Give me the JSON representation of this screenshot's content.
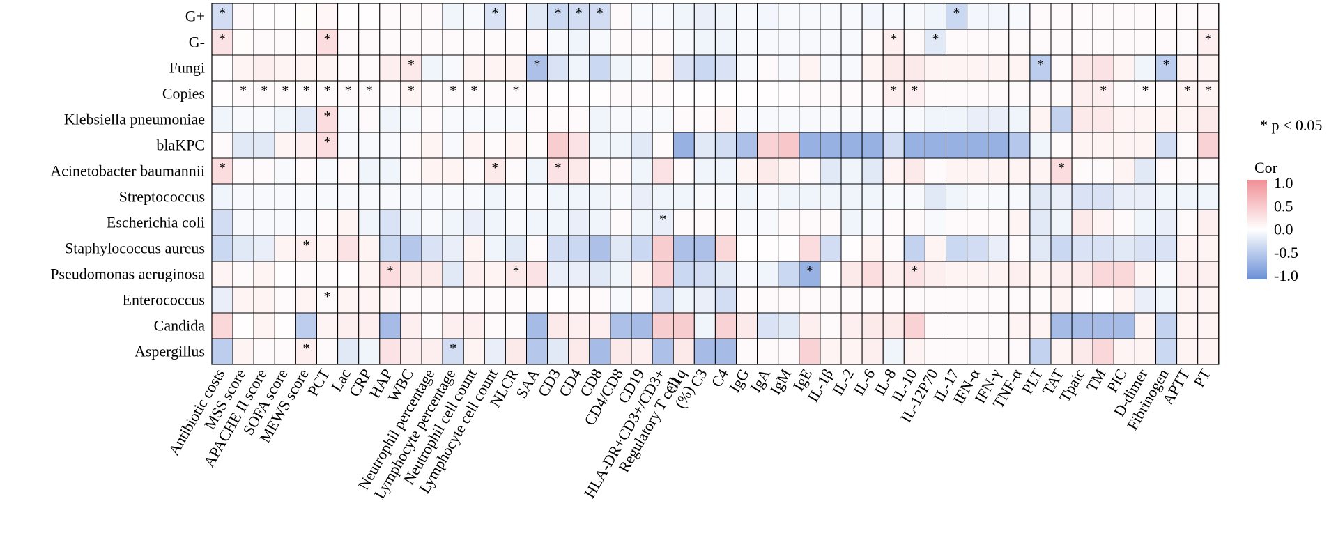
{
  "chart_data": {
    "type": "heatmap",
    "title": "",
    "rows": [
      "G+",
      "G-",
      "Fungi",
      "Copies",
      "Klebsiella pneumoniae",
      "blaKPC",
      "Acinetobacter baumannii",
      "Streptococcus",
      "Escherichia coli",
      "Staphylococcus aureus",
      "Pseudomonas aeruginosa",
      "Enterococcus",
      "Candida",
      "Aspergillus"
    ],
    "columns": [
      {
        "lines": [
          "Antibiotic costs"
        ]
      },
      {
        "lines": [
          "MSS score"
        ]
      },
      {
        "lines": [
          "APACHE II score"
        ]
      },
      {
        "lines": [
          "SOFA score"
        ]
      },
      {
        "lines": [
          "MEWS score"
        ]
      },
      {
        "lines": [
          "PCT"
        ]
      },
      {
        "lines": [
          "Lac"
        ]
      },
      {
        "lines": [
          "CRP"
        ]
      },
      {
        "lines": [
          "HAP"
        ]
      },
      {
        "lines": [
          "WBC"
        ]
      },
      {
        "lines": [
          "Neutrophil percentage"
        ]
      },
      {
        "lines": [
          "Lymphocyte percentage"
        ]
      },
      {
        "lines": [
          "Neutrophil cell count"
        ]
      },
      {
        "lines": [
          "Lymphocyte cell count"
        ]
      },
      {
        "lines": [
          "NLCR"
        ]
      },
      {
        "lines": [
          "SAA"
        ]
      },
      {
        "lines": [
          "CD3"
        ]
      },
      {
        "lines": [
          "CD4"
        ]
      },
      {
        "lines": [
          "CD8"
        ]
      },
      {
        "lines": [
          "CD4/CD8"
        ]
      },
      {
        "lines": [
          "CD19"
        ]
      },
      {
        "lines": [
          "HLA-DR+CD3+/CD3+",
          "Regulatory T cell",
          "(%)"
        ]
      },
      {
        "lines": [
          "C1q"
        ]
      },
      {
        "lines": [
          "C3"
        ]
      },
      {
        "lines": [
          "C4"
        ]
      },
      {
        "lines": [
          "IgG"
        ]
      },
      {
        "lines": [
          "IgA"
        ]
      },
      {
        "lines": [
          "IgM"
        ]
      },
      {
        "lines": [
          "IgE"
        ]
      },
      {
        "lines": [
          "IL-1β"
        ]
      },
      {
        "lines": [
          "IL-2"
        ]
      },
      {
        "lines": [
          "IL-6"
        ]
      },
      {
        "lines": [
          "IL-8"
        ]
      },
      {
        "lines": [
          "IL-10"
        ]
      },
      {
        "lines": [
          "IL-12P70"
        ]
      },
      {
        "lines": [
          "IL-17"
        ]
      },
      {
        "lines": [
          "IFN-α"
        ]
      },
      {
        "lines": [
          "IFN-γ"
        ]
      },
      {
        "lines": [
          "TNF-α"
        ]
      },
      {
        "lines": [
          "PLT"
        ]
      },
      {
        "lines": [
          "TAT"
        ]
      },
      {
        "lines": [
          "Tpaic"
        ]
      },
      {
        "lines": [
          "TM"
        ]
      },
      {
        "lines": [
          "PIC"
        ]
      },
      {
        "lines": [
          "D-dimer"
        ]
      },
      {
        "lines": [
          "Fibrinogen"
        ]
      },
      {
        "lines": [
          "APTT"
        ]
      },
      {
        "lines": [
          "PT"
        ]
      }
    ],
    "values": [
      [
        -0.3,
        0.05,
        0.02,
        0.02,
        0.03,
        0.08,
        0.02,
        0.02,
        0.05,
        0.05,
        0.05,
        -0.1,
        -0.05,
        -0.25,
        0.05,
        -0.2,
        -0.35,
        -0.3,
        -0.3,
        0.05,
        -0.05,
        -0.05,
        -0.1,
        -0.15,
        -0.1,
        -0.05,
        -0.08,
        -0.05,
        -0.05,
        -0.05,
        -0.05,
        -0.08,
        -0.05,
        -0.05,
        -0.1,
        -0.35,
        -0.08,
        -0.08,
        -0.05,
        0.05,
        0.05,
        0.05,
        0.05,
        0.05,
        0.05,
        0.05,
        0.05,
        0.05
      ],
      [
        0.25,
        0.03,
        0.05,
        0.05,
        0.05,
        0.3,
        0.05,
        0.05,
        0.05,
        0.05,
        0.05,
        0.05,
        0.05,
        0.05,
        0.05,
        0.05,
        -0.05,
        -0.1,
        -0.05,
        0.05,
        0.05,
        0.05,
        -0.05,
        -0.1,
        -0.1,
        -0.05,
        -0.05,
        -0.05,
        -0.05,
        -0.05,
        -0.05,
        0.05,
        0.15,
        0.05,
        -0.2,
        0.05,
        0.05,
        0.05,
        0.05,
        0.05,
        0.05,
        0.05,
        0.05,
        0.05,
        0.05,
        0.05,
        0.05,
        0.15
      ],
      [
        0.02,
        0.1,
        0.15,
        0.1,
        0.1,
        0.1,
        0.05,
        0.05,
        0.15,
        0.2,
        -0.1,
        -0.05,
        0.1,
        0.1,
        0.1,
        -0.55,
        -0.25,
        -0.1,
        -0.35,
        -0.1,
        -0.05,
        0.1,
        -0.25,
        -0.35,
        -0.25,
        -0.05,
        0.05,
        -0.05,
        0.1,
        -0.05,
        -0.05,
        0.1,
        0.2,
        0.2,
        0.1,
        0.1,
        0.1,
        0.1,
        0.1,
        -0.45,
        0.05,
        0.2,
        0.25,
        0.1,
        -0.1,
        -0.45,
        0.1,
        0.1
      ],
      [
        0.02,
        0.05,
        0.05,
        0.05,
        0.05,
        0.05,
        0.05,
        0.05,
        0.05,
        0.1,
        0.05,
        0.05,
        0.05,
        0.05,
        0.05,
        0.05,
        0.02,
        0.02,
        0.02,
        0.05,
        0.05,
        0.05,
        0.02,
        0.02,
        0.02,
        0.02,
        0.02,
        0.02,
        0.05,
        0.05,
        0.05,
        0.05,
        0.15,
        0.15,
        0.05,
        0.05,
        0.05,
        0.05,
        0.05,
        0.05,
        0.05,
        0.15,
        0.15,
        0.05,
        0.05,
        0.05,
        0.1,
        0.1
      ],
      [
        -0.1,
        -0.05,
        -0.05,
        -0.1,
        -0.2,
        0.3,
        -0.05,
        0.05,
        -0.1,
        -0.05,
        0.05,
        -0.05,
        -0.05,
        -0.05,
        -0.05,
        0.05,
        0.05,
        0.05,
        -0.1,
        -0.05,
        -0.05,
        -0.05,
        0.05,
        0.05,
        0.1,
        -0.05,
        -0.05,
        -0.05,
        -0.05,
        -0.05,
        -0.05,
        -0.05,
        -0.05,
        -0.05,
        -0.1,
        -0.1,
        -0.15,
        -0.15,
        -0.1,
        0.1,
        -0.4,
        0.2,
        0.2,
        0.1,
        0.1,
        0.1,
        0.1,
        0.2
      ],
      [
        0.05,
        -0.2,
        -0.2,
        0.1,
        0.15,
        0.3,
        -0.05,
        -0.05,
        -0.05,
        0.05,
        0.1,
        -0.05,
        0.1,
        0.05,
        0.1,
        0.05,
        0.45,
        0.25,
        -0.1,
        -0.1,
        -0.2,
        0.05,
        -0.7,
        -0.2,
        -0.3,
        -0.55,
        0.4,
        0.5,
        -0.7,
        -0.7,
        -0.7,
        -0.7,
        -0.3,
        -0.7,
        -0.7,
        -0.7,
        -0.7,
        -0.7,
        -0.5,
        -0.1,
        0.05,
        0.1,
        0.1,
        0.1,
        0.1,
        -0.3,
        0.05,
        0.4
      ],
      [
        0.3,
        0.05,
        0.05,
        -0.05,
        0.05,
        -0.05,
        0.05,
        -0.1,
        -0.1,
        0.05,
        0.1,
        0.1,
        0.05,
        0.2,
        0.05,
        -0.1,
        0.25,
        0.2,
        0.05,
        0.05,
        -0.1,
        0.25,
        0.05,
        -0.1,
        -0.1,
        0.1,
        0.2,
        0.1,
        0.05,
        -0.2,
        -0.1,
        -0.2,
        0.1,
        0.2,
        0.05,
        0.1,
        0.1,
        0.1,
        0.1,
        0.1,
        0.3,
        0.05,
        0.05,
        0.1,
        -0.2,
        0.05,
        0.05,
        0.05
      ],
      [
        -0.1,
        -0.05,
        -0.05,
        -0.05,
        -0.05,
        -0.05,
        -0.05,
        -0.05,
        -0.05,
        -0.05,
        -0.05,
        -0.05,
        -0.05,
        -0.1,
        -0.05,
        -0.05,
        -0.1,
        -0.1,
        -0.1,
        -0.05,
        -0.15,
        -0.1,
        -0.1,
        -0.05,
        -0.05,
        -0.1,
        -0.05,
        -0.1,
        -0.1,
        -0.1,
        -0.1,
        -0.1,
        -0.05,
        -0.05,
        -0.2,
        -0.1,
        -0.05,
        -0.05,
        -0.05,
        -0.2,
        -0.15,
        -0.25,
        -0.25,
        -0.15,
        -0.15,
        -0.1,
        -0.1,
        -0.1
      ],
      [
        -0.3,
        -0.05,
        -0.05,
        -0.05,
        -0.05,
        0.05,
        0.1,
        -0.1,
        -0.25,
        -0.1,
        -0.05,
        -0.1,
        -0.15,
        -0.1,
        -0.05,
        -0.1,
        -0.1,
        -0.15,
        -0.1,
        0.05,
        -0.1,
        -0.15,
        0.05,
        0.05,
        0.05,
        -0.05,
        -0.05,
        0.05,
        0.05,
        0.05,
        -0.1,
        -0.05,
        0.05,
        0.05,
        -0.05,
        0.05,
        0.05,
        0.05,
        0.1,
        -0.2,
        -0.1,
        0.2,
        0.1,
        0.05,
        -0.1,
        -0.15,
        0.05,
        0.15
      ],
      [
        -0.35,
        -0.2,
        -0.15,
        0.1,
        0.15,
        0.1,
        0.25,
        0.1,
        -0.35,
        -0.5,
        -0.25,
        -0.15,
        0.1,
        -0.1,
        -0.2,
        0.05,
        -0.3,
        -0.35,
        -0.55,
        -0.2,
        -0.35,
        0.45,
        -0.55,
        -0.55,
        0.35,
        0.02,
        0.02,
        0.02,
        0.3,
        -0.3,
        0.02,
        0.1,
        0.05,
        -0.4,
        0.1,
        -0.35,
        -0.3,
        -0.15,
        0.05,
        -0.2,
        -0.35,
        -0.25,
        -0.25,
        -0.2,
        -0.25,
        -0.25,
        0.1,
        0.1
      ],
      [
        0.1,
        0.05,
        0.1,
        0.02,
        0.05,
        0.05,
        0.02,
        0.1,
        0.3,
        0.2,
        0.2,
        -0.2,
        0.15,
        0.1,
        0.2,
        0.25,
        -0.15,
        -0.15,
        -0.2,
        -0.1,
        0.1,
        0.4,
        -0.35,
        -0.3,
        -0.2,
        -0.05,
        -0.1,
        -0.35,
        -0.7,
        0.02,
        0.2,
        0.3,
        0.15,
        0.25,
        0.15,
        0.1,
        0.1,
        0.1,
        0.15,
        0.1,
        0.15,
        0.2,
        0.35,
        0.35,
        0.1,
        -0.05,
        0.15,
        0.15
      ],
      [
        -0.15,
        0.1,
        0.1,
        0.05,
        0.1,
        0.05,
        0.1,
        0.1,
        0.1,
        0.05,
        0.05,
        0.05,
        0.05,
        0.05,
        0.05,
        0.05,
        0.02,
        0.05,
        0.05,
        -0.05,
        0.05,
        -0.3,
        -0.1,
        -0.15,
        -0.3,
        0.05,
        0.05,
        0.05,
        0.05,
        0.05,
        0.05,
        0.05,
        0.05,
        0.05,
        0.05,
        0.05,
        0.05,
        0.05,
        0.05,
        0.05,
        0.1,
        0.05,
        0.02,
        0.1,
        -0.15,
        -0.1,
        0.1,
        0.1
      ],
      [
        0.35,
        0.02,
        0.1,
        0.02,
        -0.45,
        0.1,
        0.15,
        0.15,
        -0.6,
        0.15,
        0.05,
        0.15,
        0.15,
        0.05,
        0.05,
        -0.6,
        0.2,
        0.15,
        0.15,
        -0.55,
        -0.6,
        0.45,
        0.45,
        -0.1,
        0.4,
        0.2,
        -0.25,
        -0.2,
        0.15,
        0.05,
        0.15,
        0.2,
        0.2,
        0.4,
        0.05,
        0.05,
        0.05,
        0.05,
        0.1,
        0.1,
        -0.6,
        -0.6,
        -0.6,
        -0.6,
        0.1,
        -0.4,
        0.1,
        0.1
      ],
      [
        -0.45,
        0.1,
        0.05,
        0.05,
        0.15,
        0.05,
        -0.2,
        -0.1,
        0.25,
        0.15,
        0.15,
        -0.3,
        0.1,
        -0.15,
        0.2,
        -0.5,
        -0.2,
        0.2,
        -0.6,
        0.2,
        0.15,
        -0.55,
        0.2,
        -0.6,
        -0.6,
        0.05,
        0.05,
        0.05,
        0.4,
        0.1,
        0.1,
        0.15,
        -0.1,
        0.1,
        0.05,
        0.05,
        0.05,
        0.05,
        0.05,
        -0.4,
        0.1,
        0.2,
        0.35,
        0.1,
        0.1,
        -0.35,
        0.1,
        0.1
      ]
    ],
    "significant": [
      [
        0,
        0
      ],
      [
        0,
        13
      ],
      [
        0,
        16
      ],
      [
        0,
        17
      ],
      [
        0,
        18
      ],
      [
        0,
        35
      ],
      [
        1,
        0
      ],
      [
        1,
        5
      ],
      [
        1,
        32
      ],
      [
        1,
        34
      ],
      [
        1,
        47
      ],
      [
        2,
        9
      ],
      [
        2,
        15
      ],
      [
        2,
        39
      ],
      [
        2,
        45
      ],
      [
        3,
        1
      ],
      [
        3,
        2
      ],
      [
        3,
        3
      ],
      [
        3,
        4
      ],
      [
        3,
        5
      ],
      [
        3,
        6
      ],
      [
        3,
        7
      ],
      [
        3,
        9
      ],
      [
        3,
        11
      ],
      [
        3,
        12
      ],
      [
        3,
        14
      ],
      [
        3,
        32
      ],
      [
        3,
        33
      ],
      [
        3,
        42
      ],
      [
        3,
        44
      ],
      [
        3,
        46
      ],
      [
        3,
        47
      ],
      [
        4,
        5
      ],
      [
        5,
        5
      ],
      [
        6,
        0
      ],
      [
        6,
        13
      ],
      [
        6,
        16
      ],
      [
        6,
        40
      ],
      [
        8,
        21
      ],
      [
        9,
        4
      ],
      [
        10,
        8
      ],
      [
        10,
        14
      ],
      [
        10,
        28
      ],
      [
        10,
        33
      ],
      [
        11,
        5
      ],
      [
        13,
        4
      ],
      [
        13,
        11
      ]
    ],
    "significance_symbol": "*",
    "significance_note": "* p < 0.05",
    "legend": {
      "title": "Cor",
      "ticks": [
        "1.0",
        "0.5",
        "0.0",
        "-0.5",
        "-1.0"
      ],
      "range": [
        -1.0,
        1.0
      ]
    },
    "colors": {
      "negative": "#6a8fd6",
      "zero": "#ffffff",
      "positive": "#f08f95",
      "border": "#000000"
    }
  }
}
